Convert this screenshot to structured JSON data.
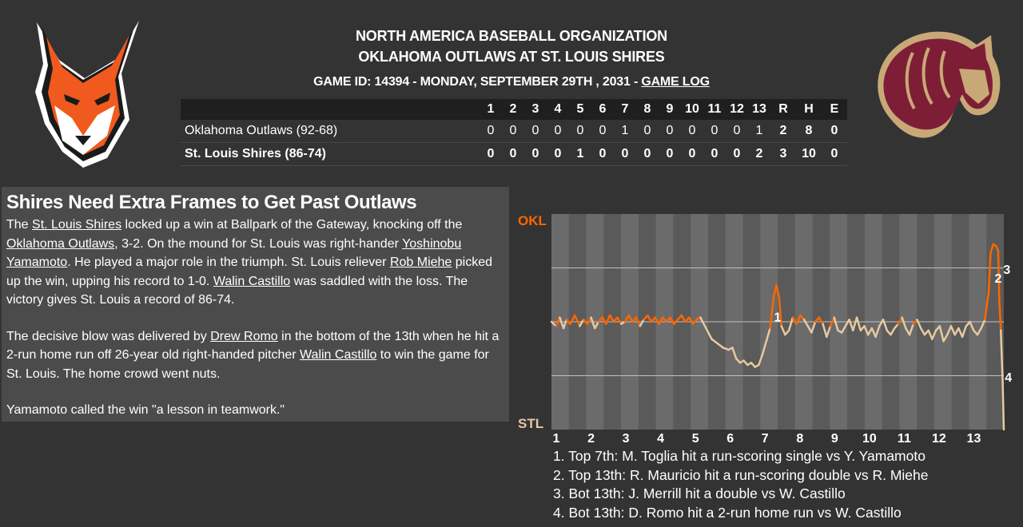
{
  "header": {
    "league": "NORTH AMERICA BASEBALL ORGANIZATION",
    "matchup": "OKLAHOMA OUTLAWS AT ST. LOUIS SHIRES",
    "game_info": "GAME ID: 14394 - MONDAY, SEPTEMBER 29TH , 2031 - ",
    "game_log_link": "GAME LOG"
  },
  "logos": {
    "away": "fox-logo",
    "home": "horse-logo"
  },
  "linescore": {
    "innings": [
      "1",
      "2",
      "3",
      "4",
      "5",
      "6",
      "7",
      "8",
      "9",
      "10",
      "11",
      "12",
      "13"
    ],
    "totals_headers": [
      "R",
      "H",
      "E"
    ],
    "teams": [
      {
        "name": "Oklahoma Outlaws (92-68)",
        "innings": [
          "0",
          "0",
          "0",
          "0",
          "0",
          "0",
          "1",
          "0",
          "0",
          "0",
          "0",
          "0",
          "1"
        ],
        "totals": [
          "2",
          "8",
          "0"
        ]
      },
      {
        "name": "St. Louis Shires (86-74)",
        "innings": [
          "0",
          "0",
          "0",
          "0",
          "1",
          "0",
          "0",
          "0",
          "0",
          "0",
          "0",
          "0",
          "2"
        ],
        "totals": [
          "3",
          "10",
          "0"
        ]
      }
    ]
  },
  "article": {
    "headline": "Shires Need Extra Frames to Get Past Outlaws",
    "p1": {
      "t1": "The ",
      "l1": "St. Louis Shires",
      "t2": " locked up a win at Ballpark of the Gateway, knocking off the ",
      "l2": "Oklahoma Outlaws",
      "t3": ", 3-2. On the mound for St. Louis was right-hander ",
      "l3": "Yoshinobu Yamamoto",
      "t4": ". He played a major role in the triumph. St. Louis reliever ",
      "l4": "Rob Miehe",
      "t5": " picked up the win, upping his record to 1-0. ",
      "l5": "Walin Castillo",
      "t6": " was saddled with the loss. The victory gives St. Louis a record of 86-74."
    },
    "p2": {
      "t1": "The decisive blow was delivered by ",
      "l1": "Drew Romo",
      "t2": " in the bottom of the 13th when he hit a 2-run home run off 26-year old right-handed pitcher ",
      "l2": "Walin Castillo",
      "t3": " to win the game for St. Louis. The home crowd went nuts."
    },
    "p3": "Yamamoto called the win \"a lesson in teamwork.\""
  },
  "chart_data": {
    "type": "line",
    "top_label": "OKL",
    "bottom_label": "STL",
    "x_ticks": [
      "1",
      "2",
      "3",
      "4",
      "5",
      "6",
      "7",
      "8",
      "9",
      "10",
      "11",
      "12",
      "13"
    ],
    "y_range": [
      -50,
      50
    ],
    "colors": {
      "away": "#ff6600",
      "home": "#e6c9a0",
      "marker": "#ffffff"
    },
    "series": [
      {
        "values": [
          [
            0.0,
            0
          ],
          [
            0.12,
            -2
          ],
          [
            0.22,
            2
          ],
          [
            0.32,
            -3
          ],
          [
            0.4,
            1
          ],
          [
            0.5,
            -1
          ],
          [
            0.62,
            3
          ],
          [
            0.75,
            -2
          ],
          [
            0.85,
            1
          ],
          [
            0.95,
            -1
          ],
          [
            1.05,
            2
          ],
          [
            1.15,
            -3
          ],
          [
            1.25,
            0
          ],
          [
            1.35,
            2
          ],
          [
            1.45,
            -1
          ],
          [
            1.55,
            3
          ],
          [
            1.65,
            0
          ],
          [
            1.75,
            2
          ],
          [
            1.85,
            -1
          ],
          [
            1.95,
            0
          ],
          [
            2.05,
            3
          ],
          [
            2.15,
            0
          ],
          [
            2.25,
            2
          ],
          [
            2.35,
            -2
          ],
          [
            2.45,
            1
          ],
          [
            2.55,
            3
          ],
          [
            2.65,
            0
          ],
          [
            2.75,
            2
          ],
          [
            2.85,
            -1
          ],
          [
            2.95,
            2
          ],
          [
            3.05,
            0
          ],
          [
            3.15,
            2
          ],
          [
            3.25,
            -1
          ],
          [
            3.35,
            1
          ],
          [
            3.45,
            3
          ],
          [
            3.55,
            0
          ],
          [
            3.65,
            2
          ],
          [
            3.75,
            -1
          ],
          [
            3.85,
            1
          ],
          [
            3.95,
            2
          ],
          [
            4.1,
            -3
          ],
          [
            4.25,
            -8
          ],
          [
            4.4,
            -10
          ],
          [
            4.55,
            -12
          ],
          [
            4.7,
            -13
          ],
          [
            4.8,
            -12
          ],
          [
            4.9,
            -17
          ],
          [
            5.0,
            -19
          ],
          [
            5.1,
            -18
          ],
          [
            5.2,
            -20
          ],
          [
            5.3,
            -19
          ],
          [
            5.4,
            -21
          ],
          [
            5.5,
            -20
          ],
          [
            5.6,
            -15
          ],
          [
            5.7,
            -9
          ],
          [
            5.8,
            -3
          ],
          [
            5.9,
            12
          ],
          [
            5.97,
            17
          ],
          [
            6.04,
            11
          ],
          [
            6.1,
            -2
          ],
          [
            6.2,
            -6
          ],
          [
            6.3,
            -4
          ],
          [
            6.4,
            2
          ],
          [
            6.5,
            -1
          ],
          [
            6.6,
            3
          ],
          [
            6.7,
            1
          ],
          [
            6.8,
            -2
          ],
          [
            6.9,
            -5
          ],
          [
            7.0,
            0
          ],
          [
            7.1,
            2
          ],
          [
            7.2,
            -1
          ],
          [
            7.3,
            -7
          ],
          [
            7.4,
            -2
          ],
          [
            7.5,
            2
          ],
          [
            7.6,
            -4
          ],
          [
            7.7,
            -5
          ],
          [
            7.8,
            -2
          ],
          [
            7.9,
            1
          ],
          [
            8.0,
            -4
          ],
          [
            8.1,
            2
          ],
          [
            8.2,
            -4
          ],
          [
            8.3,
            -2
          ],
          [
            8.4,
            -6
          ],
          [
            8.5,
            -3
          ],
          [
            8.6,
            -7
          ],
          [
            8.7,
            -2
          ],
          [
            8.8,
            1
          ],
          [
            8.9,
            -4
          ],
          [
            9.0,
            -6
          ],
          [
            9.1,
            -3
          ],
          [
            9.2,
            -1
          ],
          [
            9.3,
            2
          ],
          [
            9.4,
            -3
          ],
          [
            9.5,
            -6
          ],
          [
            9.6,
            -1
          ],
          [
            9.7,
            1
          ],
          [
            9.8,
            -3
          ],
          [
            9.9,
            -6
          ],
          [
            10.0,
            -4
          ],
          [
            10.1,
            -8
          ],
          [
            10.2,
            -4
          ],
          [
            10.3,
            -2
          ],
          [
            10.4,
            -9
          ],
          [
            10.5,
            -6
          ],
          [
            10.6,
            -2
          ],
          [
            10.7,
            -6
          ],
          [
            10.8,
            -3
          ],
          [
            10.9,
            -7
          ],
          [
            11.0,
            -2
          ],
          [
            11.1,
            0
          ],
          [
            11.2,
            -4
          ],
          [
            11.3,
            -6
          ],
          [
            11.4,
            -3
          ],
          [
            11.5,
            1
          ],
          [
            11.6,
            14
          ],
          [
            11.65,
            32
          ],
          [
            11.72,
            36
          ],
          [
            11.8,
            35
          ],
          [
            11.85,
            33
          ],
          [
            11.88,
            10
          ],
          [
            11.92,
            -4
          ],
          [
            11.97,
            -28
          ],
          [
            12.0,
            -50
          ]
        ]
      }
    ],
    "markers": [
      {
        "label": "1",
        "x": 6.0,
        "y": 2
      },
      {
        "label": "2",
        "x": 11.85,
        "y": 20
      },
      {
        "label": "3",
        "x": 12.08,
        "y": 24
      },
      {
        "label": "4",
        "x": 12.12,
        "y": -26
      }
    ],
    "notes": [
      "1. Top 7th: M. Toglia hit a run-scoring single vs Y. Yamamoto",
      "2. Top 13th: R. Mauricio hit a run-scoring double vs R. Miehe",
      "3. Bot 13th: J. Merrill hit a double vs W. Castillo",
      "4. Bot 13th: D. Romo hit a 2-run home run vs W. Castillo"
    ]
  }
}
